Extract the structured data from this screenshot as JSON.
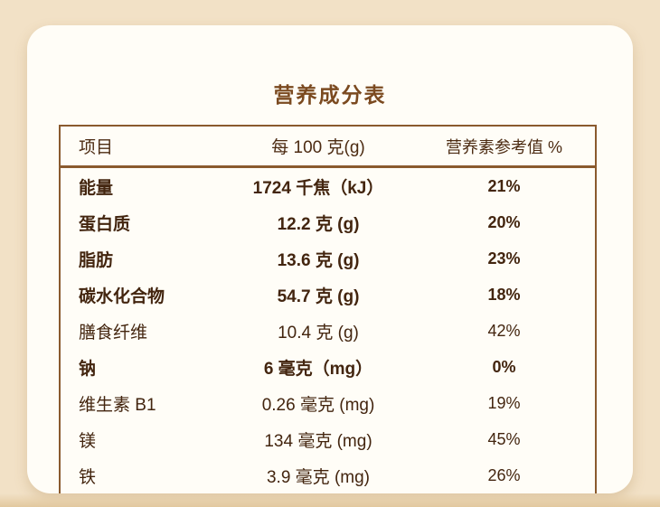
{
  "page": {
    "title": "营养成分表"
  },
  "table": {
    "headers": [
      "项目",
      "每 100 克(g)",
      "营养素参考值 %"
    ],
    "rows": [
      {
        "name": "能量",
        "amount": "1724 千焦（kJ）",
        "nrv": "21%"
      },
      {
        "name": "蛋白质",
        "amount": "12.2 克 (g)",
        "nrv": "20%"
      },
      {
        "name": "脂肪",
        "amount": "13.6 克 (g)",
        "nrv": "23%"
      },
      {
        "name": "碳水化合物",
        "amount": "54.7 克 (g)",
        "nrv": "18%"
      },
      {
        "name": "膳食纤维",
        "amount": "10.4 克 (g)",
        "nrv": "42%"
      },
      {
        "name": "钠",
        "amount": "6 毫克（mg）",
        "nrv": "0%"
      },
      {
        "name": "维生素 B1",
        "amount": "0.26 毫克 (mg)",
        "nrv": "19%"
      },
      {
        "name": "镁",
        "amount": "134 毫克 (mg)",
        "nrv": "45%"
      },
      {
        "name": "铁",
        "amount": "3.9 毫克 (mg)",
        "nrv": "26%"
      }
    ]
  },
  "colors": {
    "accent_border": "#8a5a2e",
    "text": "#43250f",
    "title": "#7b4a20",
    "background": "#f2e1c6",
    "card": "#fffdf7"
  }
}
